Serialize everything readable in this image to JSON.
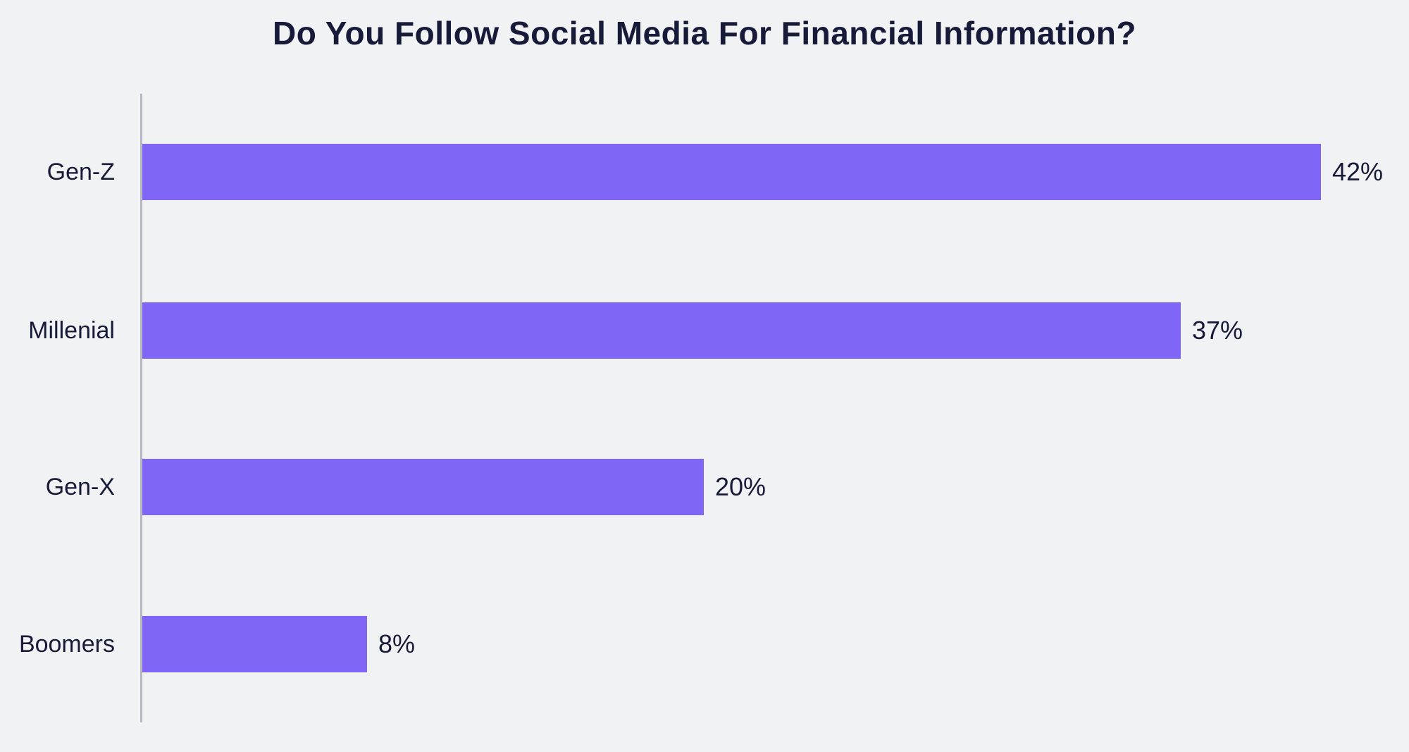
{
  "chart_data": {
    "type": "bar",
    "orientation": "horizontal",
    "title": "Do You Follow Social Media For Financial Information?",
    "categories": [
      "Gen-Z",
      "Millenial",
      "Gen-X",
      "Boomers"
    ],
    "values": [
      42,
      37,
      20,
      8
    ],
    "value_labels": [
      "42%",
      "37%",
      "20%",
      "8%"
    ],
    "xlabel": "",
    "ylabel": "",
    "xlim": [
      0,
      42
    ],
    "grid": false,
    "legend": "none",
    "colors": {
      "bar": "#8065F7",
      "background": "#F1F2F4",
      "axis_line": "#B7B9C2",
      "text": "#171A38"
    }
  }
}
